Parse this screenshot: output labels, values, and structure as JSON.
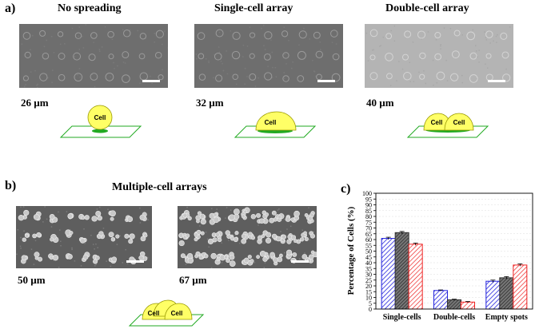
{
  "panel_a": {
    "letter": "a)",
    "items": [
      {
        "title": "No spreading",
        "size": "26 µm",
        "cell_label": "Cell",
        "style": "round"
      },
      {
        "title": "Single-cell array",
        "size": "32 µm",
        "cell_label": "Cell",
        "style": "spread"
      },
      {
        "title": "Double-cell array",
        "size": "40 µm",
        "cell_labels": [
          "Cell",
          "Cell"
        ],
        "style": "double"
      }
    ]
  },
  "panel_b": {
    "letter": "b)",
    "title": "Multiple-cell arrays",
    "sizes": [
      "50 µm",
      "67 µm"
    ],
    "cell_labels": [
      "Cell",
      "Cell"
    ]
  },
  "panel_c": {
    "letter": "c)"
  },
  "colors": {
    "cell_fill": "#ffff66",
    "pattern_green": "#22aa22",
    "blue": "#2222dd",
    "gray": "#333333",
    "red": "#ee2222"
  },
  "chart_data": {
    "type": "bar",
    "categories": [
      "Single-cells",
      "Double-cells",
      "Empty spots"
    ],
    "ylabel": "Percentage of Cells (%)",
    "ylim": [
      0,
      100
    ],
    "yticks": [
      "0",
      "5",
      "10",
      "15",
      "20",
      "25",
      "30",
      "35",
      "40",
      "45",
      "50",
      "55",
      "60",
      "65",
      "70",
      "75",
      "80",
      "85",
      "90",
      "95",
      "100"
    ],
    "grid": true,
    "series": [
      {
        "values": [
          61,
          16,
          24
        ],
        "errors": [
          1,
          0.5,
          1
        ],
        "color": "#2222dd",
        "pattern": "hatch"
      },
      {
        "values": [
          66,
          8,
          27
        ],
        "errors": [
          1,
          0.5,
          1
        ],
        "color": "#333333",
        "pattern": "dense"
      },
      {
        "values": [
          56,
          6,
          38
        ],
        "errors": [
          1,
          0.5,
          1
        ],
        "color": "#ee2222",
        "pattern": "hatch"
      }
    ]
  }
}
